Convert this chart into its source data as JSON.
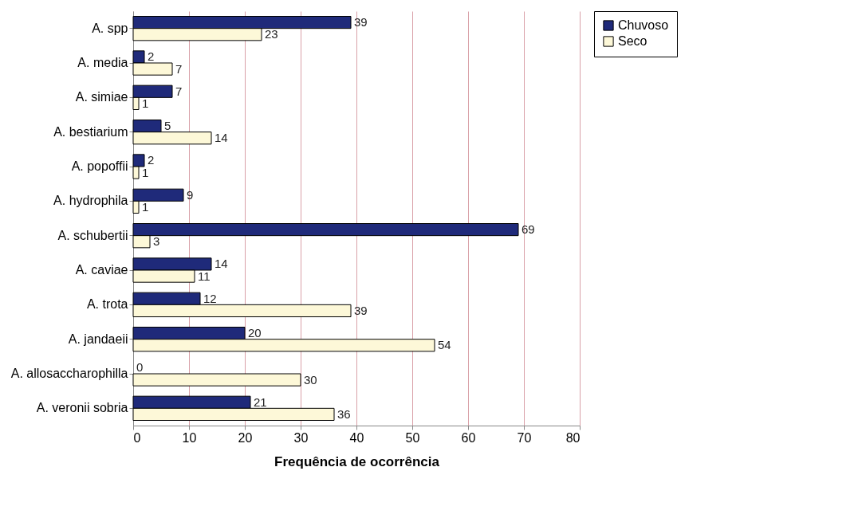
{
  "chart_data": {
    "type": "bar",
    "orientation": "horizontal",
    "xlabel": "Frequência de ocorrência",
    "categories": [
      "A. spp",
      "A. media",
      "A. simiae",
      "A. bestiarium",
      "A. popoffii",
      "A. hydrophila",
      "A. schubertii",
      "A. caviae",
      "A. trota",
      "A. jandaeii",
      "A. allosaccharophilla",
      "A. veronii sobria"
    ],
    "series": [
      {
        "name": "Chuvoso",
        "color": "#1f2a7a",
        "values": [
          39,
          2,
          7,
          5,
          2,
          9,
          69,
          14,
          12,
          20,
          0,
          21
        ]
      },
      {
        "name": "Seco",
        "color": "#fdf8d8",
        "values": [
          23,
          7,
          1,
          14,
          1,
          1,
          3,
          11,
          39,
          54,
          30,
          36
        ]
      }
    ],
    "xlim": [
      0,
      80
    ],
    "xticks": [
      0,
      10,
      20,
      30,
      40,
      50,
      60,
      70,
      80
    ],
    "grid": "x",
    "legend": "right",
    "data_labels": true
  }
}
